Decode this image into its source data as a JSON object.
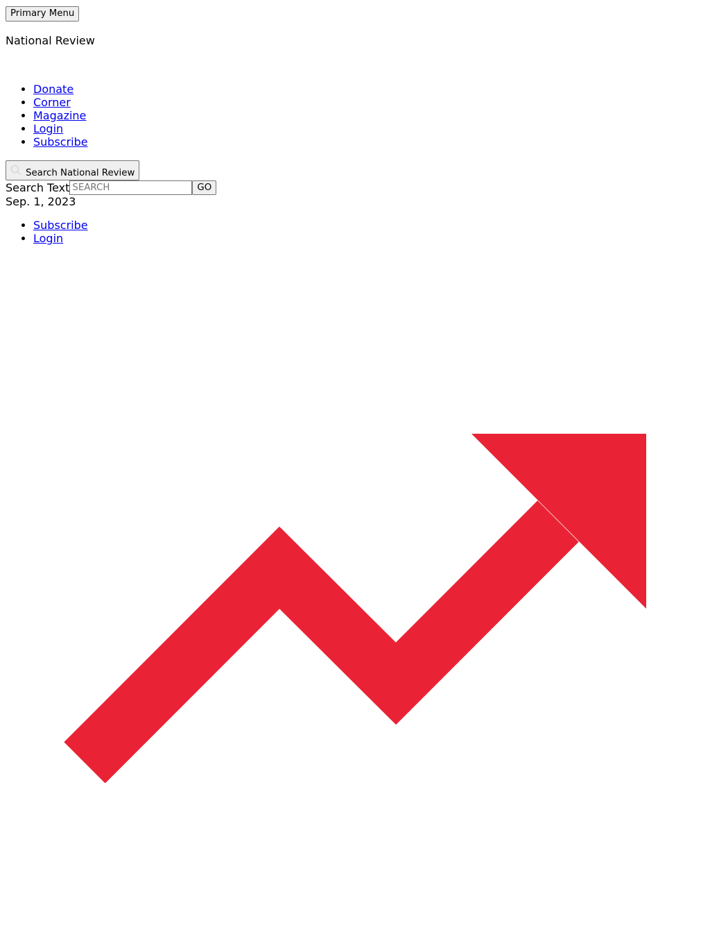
{
  "header": {
    "menu_button_label": "Primary Menu",
    "site_name": "National Review"
  },
  "primary_nav": {
    "items": [
      {
        "label": "Donate"
      },
      {
        "label": "Corner"
      },
      {
        "label": "Magazine"
      },
      {
        "label": "Login"
      },
      {
        "label": "Subscribe"
      }
    ]
  },
  "search": {
    "toggle_label": "Search National Review",
    "field_label": "Search Text",
    "placeholder": "SEARCH",
    "value": "",
    "submit_label": "GO"
  },
  "date": "Sep. 1, 2023",
  "account_nav": {
    "items": [
      {
        "label": "Subscribe"
      },
      {
        "label": "Login"
      }
    ]
  },
  "graphic": {
    "icon": "trending-up-arrow-icon",
    "color": "#e92335"
  },
  "colors": {
    "link": "#0000ee",
    "accent": "#e92335"
  }
}
